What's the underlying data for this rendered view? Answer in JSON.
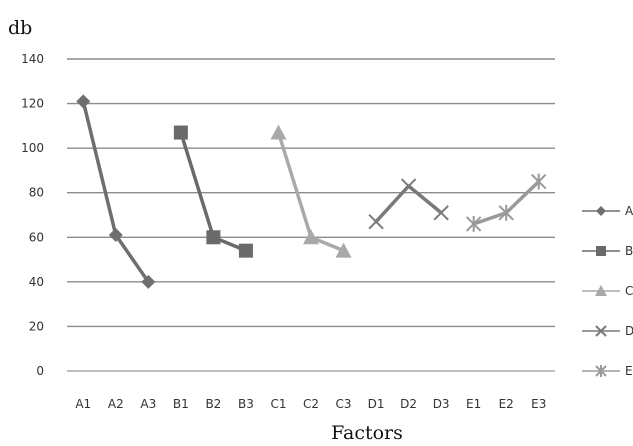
{
  "chart_data": {
    "type": "line",
    "title": "",
    "ylabel": "db",
    "xlabel": "Factors",
    "ylim": [
      0,
      140
    ],
    "yticks": [
      0,
      20,
      40,
      60,
      80,
      100,
      120,
      140
    ],
    "grid": true,
    "legend_position": "right (clipped)",
    "categories": [
      "A1",
      "A2",
      "A3",
      "B1",
      "B2",
      "B3",
      "C1",
      "C2",
      "C3",
      "D1",
      "D2",
      "D3",
      "E1",
      "E2",
      "E3"
    ],
    "series": [
      {
        "name": "A",
        "marker": "diamond",
        "color": "#6f6f6f",
        "points": [
          {
            "x": "A1",
            "y": 121
          },
          {
            "x": "A2",
            "y": 61
          },
          {
            "x": "A3",
            "y": 40
          }
        ]
      },
      {
        "name": "B",
        "marker": "square",
        "color": "#6a6a6a",
        "points": [
          {
            "x": "B1",
            "y": 107
          },
          {
            "x": "B2",
            "y": 60
          },
          {
            "x": "B3",
            "y": 54
          }
        ]
      },
      {
        "name": "C",
        "marker": "triangle",
        "color": "#a9a9a9",
        "points": [
          {
            "x": "C1",
            "y": 107
          },
          {
            "x": "C2",
            "y": 60
          },
          {
            "x": "C3",
            "y": 54
          }
        ]
      },
      {
        "name": "D",
        "marker": "x",
        "color": "#7a7a7a",
        "points": [
          {
            "x": "D1",
            "y": 67
          },
          {
            "x": "D2",
            "y": 83
          },
          {
            "x": "D3",
            "y": 71
          }
        ]
      },
      {
        "name": "E",
        "marker": "star",
        "color": "#9a9a9a",
        "points": [
          {
            "x": "E1",
            "y": 66
          },
          {
            "x": "E2",
            "y": 71
          },
          {
            "x": "E3",
            "y": 85
          }
        ]
      }
    ]
  }
}
